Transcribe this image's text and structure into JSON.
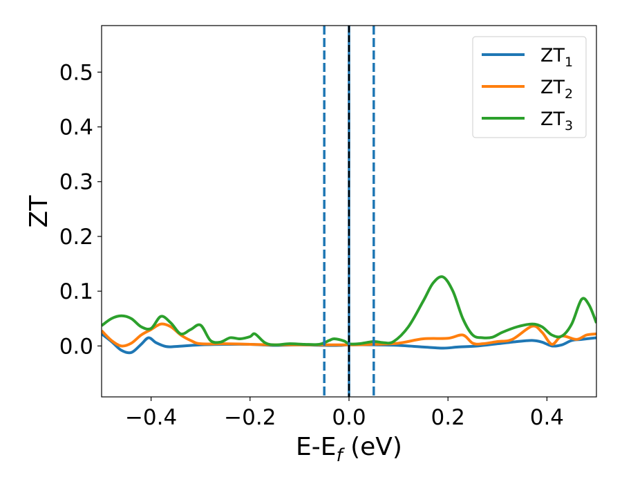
{
  "chart_data": {
    "type": "line",
    "title": "",
    "xlabel_parts": {
      "main": "E-E",
      "sub": "f",
      "unit": " (eV)"
    },
    "ylabel": "ZT",
    "xlim": [
      -0.5,
      0.5
    ],
    "ylim": [
      -0.093,
      0.585
    ],
    "xticks": [
      -0.4,
      -0.2,
      0.0,
      0.2,
      0.4
    ],
    "xtick_labels": [
      "−0.4",
      "−0.2",
      "0.0",
      "0.2",
      "0.4"
    ],
    "yticks": [
      0.0,
      0.1,
      0.2,
      0.3,
      0.4,
      0.5
    ],
    "ytick_labels": [
      "0.0",
      "0.1",
      "0.2",
      "0.3",
      "0.4",
      "0.5"
    ],
    "grid": false,
    "legend_position": "top-right",
    "vertical_lines": [
      {
        "x": -0.05,
        "style": "dashed",
        "color": "#1f77b4"
      },
      {
        "x": 0.05,
        "style": "dashed",
        "color": "#1f77b4"
      },
      {
        "x": 0.0,
        "style": "solid",
        "color": "#1f77b4"
      },
      {
        "x": 0.0,
        "style": "dashed",
        "color": "#000000"
      }
    ],
    "series": [
      {
        "name": "ZT",
        "subscript": "1",
        "color": "#1f77b4",
        "x": [
          -0.5,
          -0.48,
          -0.46,
          -0.44,
          -0.42,
          -0.405,
          -0.39,
          -0.37,
          -0.35,
          -0.3,
          -0.25,
          -0.2,
          -0.15,
          -0.1,
          -0.05,
          -0.02,
          0.0,
          0.05,
          0.1,
          0.15,
          0.19,
          0.22,
          0.26,
          0.3,
          0.34,
          0.37,
          0.39,
          0.41,
          0.43,
          0.45,
          0.47,
          0.5
        ],
        "y": [
          0.022,
          0.008,
          -0.008,
          -0.012,
          0.003,
          0.015,
          0.006,
          -0.001,
          -0.001,
          0.002,
          0.003,
          0.003,
          0.001,
          0.002,
          0.001,
          0.001,
          0.002,
          0.002,
          0.001,
          -0.002,
          -0.004,
          -0.002,
          0.0,
          0.004,
          0.008,
          0.01,
          0.007,
          0.0,
          0.002,
          0.01,
          0.012,
          0.015
        ]
      },
      {
        "name": "ZT",
        "subscript": "2",
        "color": "#ff7f0e",
        "x": [
          -0.5,
          -0.48,
          -0.46,
          -0.44,
          -0.42,
          -0.4,
          -0.38,
          -0.36,
          -0.34,
          -0.32,
          -0.3,
          -0.25,
          -0.2,
          -0.15,
          -0.1,
          -0.05,
          0.0,
          0.05,
          0.1,
          0.15,
          0.2,
          0.23,
          0.25,
          0.27,
          0.3,
          0.33,
          0.37,
          0.39,
          0.41,
          0.43,
          0.46,
          0.48,
          0.5
        ],
        "y": [
          0.028,
          0.01,
          0.0,
          0.005,
          0.02,
          0.03,
          0.04,
          0.035,
          0.02,
          0.01,
          0.004,
          0.004,
          0.003,
          0.002,
          0.002,
          0.002,
          0.002,
          0.003,
          0.005,
          0.013,
          0.014,
          0.02,
          0.005,
          0.004,
          0.008,
          0.012,
          0.036,
          0.025,
          0.003,
          0.018,
          0.012,
          0.02,
          0.022
        ]
      },
      {
        "name": "ZT",
        "subscript": "3",
        "color": "#2ca02c",
        "x": [
          -0.5,
          -0.48,
          -0.46,
          -0.44,
          -0.42,
          -0.4,
          -0.38,
          -0.36,
          -0.34,
          -0.32,
          -0.3,
          -0.28,
          -0.26,
          -0.24,
          -0.22,
          -0.2,
          -0.19,
          -0.17,
          -0.15,
          -0.12,
          -0.09,
          -0.06,
          -0.04,
          -0.03,
          -0.01,
          0.0,
          0.02,
          0.05,
          0.07,
          0.09,
          0.12,
          0.15,
          0.17,
          0.19,
          0.21,
          0.23,
          0.25,
          0.27,
          0.29,
          0.31,
          0.34,
          0.37,
          0.39,
          0.41,
          0.43,
          0.45,
          0.47,
          0.485,
          0.5
        ],
        "y": [
          0.037,
          0.05,
          0.055,
          0.05,
          0.035,
          0.032,
          0.054,
          0.042,
          0.022,
          0.03,
          0.038,
          0.01,
          0.007,
          0.015,
          0.013,
          0.017,
          0.022,
          0.006,
          0.002,
          0.004,
          0.003,
          0.003,
          0.01,
          0.013,
          0.009,
          0.004,
          0.004,
          0.008,
          0.006,
          0.008,
          0.035,
          0.082,
          0.115,
          0.126,
          0.1,
          0.05,
          0.02,
          0.015,
          0.016,
          0.025,
          0.035,
          0.04,
          0.035,
          0.02,
          0.018,
          0.04,
          0.085,
          0.075,
          0.042
        ]
      }
    ]
  }
}
